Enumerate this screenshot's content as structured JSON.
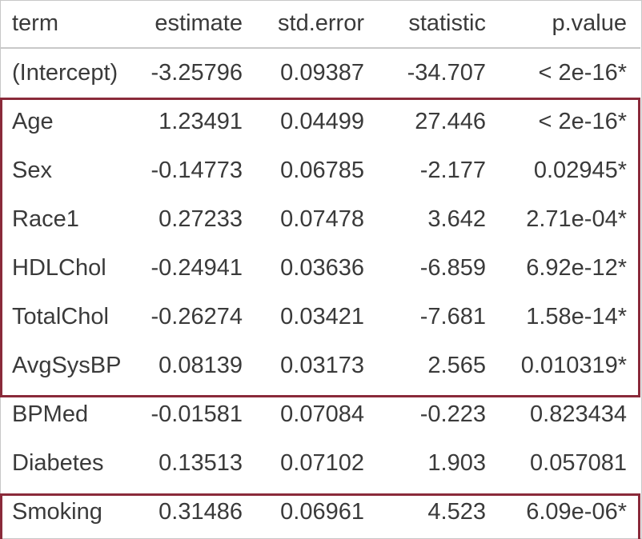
{
  "table": {
    "headers": [
      "term",
      "estimate",
      "std.error",
      "statistic",
      "p.value"
    ],
    "rows": [
      [
        "(Intercept)",
        "-3.25796",
        "0.09387",
        "-34.707",
        "< 2e-16*"
      ],
      [
        "Age",
        "1.23491",
        "0.04499",
        "27.446",
        "< 2e-16*"
      ],
      [
        "Sex",
        "-0.14773",
        "0.06785",
        "-2.177",
        "0.02945*"
      ],
      [
        "Race1",
        "0.27233",
        "0.07478",
        "3.642",
        "2.71e-04*"
      ],
      [
        "HDLChol",
        "-0.24941",
        "0.03636",
        "-6.859",
        "6.92e-12*"
      ],
      [
        "TotalChol",
        "-0.26274",
        "0.03421",
        "-7.681",
        "1.58e-14*"
      ],
      [
        "AvgSysBP",
        "0.08139",
        "0.03173",
        "2.565",
        "0.010319*"
      ],
      [
        "BPMed",
        "-0.01581",
        "0.07084",
        "-0.223",
        "0.823434"
      ],
      [
        "Diabetes",
        "0.13513",
        "0.07102",
        "1.903",
        "0.057081"
      ],
      [
        "Smoking",
        "0.31486",
        "0.06961",
        "4.523",
        "6.09e-06*"
      ]
    ]
  },
  "colors": {
    "highlight_box": "#8a2a3a",
    "text": "#3a3a3a",
    "rule": "#c8c8c8"
  }
}
